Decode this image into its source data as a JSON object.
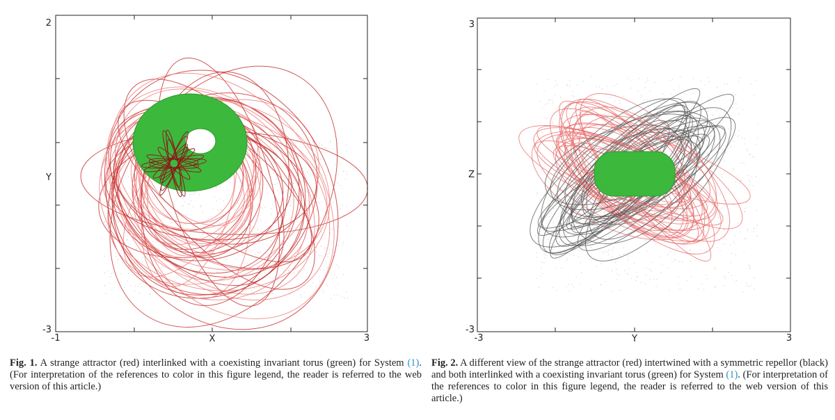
{
  "figures": [
    {
      "plot": {
        "x_tick_labels": [
          "-1",
          "3"
        ],
        "x_label": "X",
        "y_tick_labels": [
          "2",
          "-3"
        ],
        "y_label": "Y"
      },
      "caption": {
        "label": "Fig. 1.",
        "text_before": "A strange attractor (red) interlinked with a coexisting invariant torus (green) for System ",
        "ref": "(1)",
        "text_after": ". (For interpretation of the references to color in this figure legend, the reader is referred to the web version of this article.)"
      }
    },
    {
      "plot": {
        "x_tick_labels": [
          "-3",
          "3"
        ],
        "x_label": "Y",
        "y_tick_labels": [
          "3",
          "-3"
        ],
        "y_label": "Z"
      },
      "caption": {
        "label": "Fig. 2.",
        "text_before": "A different view of the strange attractor (red) intertwined with a symmetric repellor (black) and both interlinked with a coexisting invariant torus (green) for System ",
        "ref": "(1)",
        "text_after": ". (For interpretation of the references to color in this figure legend, the reader is referred to the web version of this article.)"
      }
    }
  ]
}
